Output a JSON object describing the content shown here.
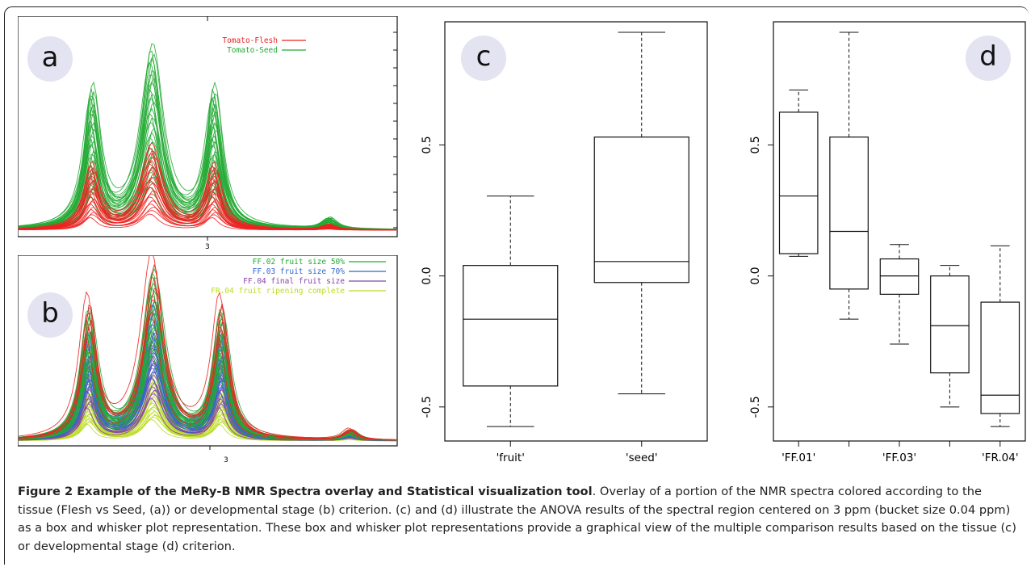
{
  "figure": {
    "panel_labels": {
      "a": "a",
      "b": "b",
      "c": "c",
      "d": "d"
    },
    "caption_title": "Figure 2 Example of the MeRy-B NMR Spectra overlay and Statistical visualization tool",
    "caption_text": ". Overlay of a portion of the NMR spectra colored according to the tissue (Flesh vs Seed, (a)) or developmental stage (b) criterion. (c) and (d) illustrate the ANOVA results of the spectral region centered on 3 ppm (bucket size 0.04 ppm) as a box and whisker plot representation. These box and whisker plot representations provide a graphical view of the multiple comparison results based on the tissue (c) or developmental stage (d) criterion."
  },
  "panel_a": {
    "x_tick": "3",
    "legend": [
      {
        "label": "Tomato-Flesh",
        "color": "#ee2222"
      },
      {
        "label": "Tomato-Seed",
        "color": "#22aa33"
      }
    ]
  },
  "panel_b": {
    "x_tick": "3",
    "legend": [
      {
        "label": "FF.02 fruit size 50%",
        "color": "#22aa33"
      },
      {
        "label": "FF.03 fruit size 70%",
        "color": "#3366cc"
      },
      {
        "label": "FF.04 final fruit size",
        "color": "#8844aa"
      },
      {
        "label": "FR.04 fruit ripening complete",
        "color": "#bbdd22"
      }
    ]
  },
  "chart_data": [
    {
      "type": "box",
      "panel": "c",
      "categories": [
        "'fruit'",
        "'seed'"
      ],
      "yticks": [
        "-0.5",
        "0.0",
        "0.5"
      ],
      "ylim": [
        -0.63,
        0.97
      ],
      "boxes": [
        {
          "min": -0.575,
          "q1": -0.42,
          "median": -0.165,
          "q3": 0.04,
          "max": 0.305
        },
        {
          "min": -0.45,
          "q1": -0.025,
          "median": 0.055,
          "q3": 0.53,
          "max": 0.93
        }
      ]
    },
    {
      "type": "box",
      "panel": "d",
      "categories": [
        "'FF.01'",
        "'FF.03'",
        "'FR.04'"
      ],
      "box_count": 5,
      "yticks": [
        "-0.5",
        "0.0",
        "0.5"
      ],
      "ylim": [
        -0.63,
        0.97
      ],
      "boxes": [
        {
          "min": 0.075,
          "q1": 0.085,
          "median": 0.305,
          "q3": 0.625,
          "max": 0.71
        },
        {
          "min": -0.165,
          "q1": -0.05,
          "median": 0.17,
          "q3": 0.53,
          "max": 0.93
        },
        {
          "min": -0.26,
          "q1": -0.07,
          "median": 0.0,
          "q3": 0.065,
          "max": 0.12
        },
        {
          "min": -0.5,
          "q1": -0.37,
          "median": -0.19,
          "q3": 0.0,
          "max": 0.04
        },
        {
          "min": -0.575,
          "q1": -0.525,
          "median": -0.455,
          "q3": -0.1,
          "max": 0.115
        }
      ]
    }
  ]
}
